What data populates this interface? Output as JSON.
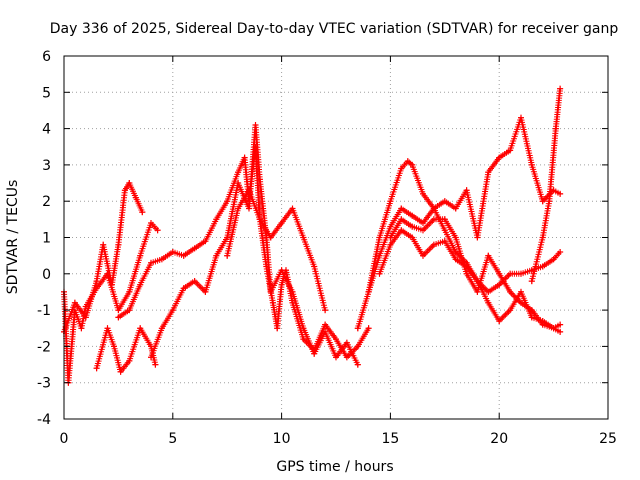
{
  "chart_data": {
    "type": "scatter",
    "title": "Day 336 of 2025, Sidereal Day-to-day VTEC variation (SDTVAR) for receiver ganp",
    "xlabel": "GPS time / hours",
    "ylabel": "SDTVAR / TECUs",
    "xlim": [
      0,
      25
    ],
    "ylim": [
      -4,
      6
    ],
    "xticks": [
      "0",
      "5",
      "10",
      "15",
      "20",
      "25"
    ],
    "yticks": [
      "-4",
      "-3",
      "-2",
      "-1",
      "0",
      "1",
      "2",
      "3",
      "4",
      "5",
      "6"
    ],
    "grid": true,
    "marker": "+",
    "color": "#ff0000",
    "series": [
      {
        "name": "trace-1",
        "x": [
          0.0,
          0.5,
          1.0,
          1.5,
          1.8,
          2.2,
          2.5,
          2.8,
          3.0,
          3.3,
          3.6
        ],
        "y": [
          -1.6,
          -0.8,
          -1.2,
          -0.2,
          0.8,
          -0.3,
          0.8,
          2.3,
          2.5,
          2.1,
          1.7
        ]
      },
      {
        "name": "trace-2",
        "x": [
          0.0,
          0.2,
          0.5,
          0.8,
          1.0,
          1.5,
          2.0,
          2.5,
          3.0,
          3.5,
          4.0,
          4.3
        ],
        "y": [
          -0.5,
          -3.0,
          -1.0,
          -1.5,
          -0.9,
          -0.4,
          0.0,
          -1.0,
          -0.5,
          0.5,
          1.4,
          1.2
        ]
      },
      {
        "name": "trace-3",
        "x": [
          1.5,
          2.0,
          2.3,
          2.6,
          3.0,
          3.5,
          4.0,
          4.2
        ],
        "y": [
          -2.6,
          -1.5,
          -2.0,
          -2.7,
          -2.4,
          -1.5,
          -2.0,
          -2.5
        ]
      },
      {
        "name": "trace-4",
        "x": [
          2.5,
          3.0,
          3.5,
          4.0,
          4.5,
          5.0,
          5.5,
          6.0,
          6.5,
          7.0,
          7.5,
          8.0,
          8.3,
          8.5,
          8.8,
          9.0,
          9.3,
          9.6,
          9.8,
          10.0,
          10.2,
          10.5,
          11.0,
          11.5,
          12.0,
          12.5,
          13.0,
          13.5,
          14.0
        ],
        "y": [
          -1.2,
          -1.0,
          -0.3,
          0.3,
          0.4,
          0.6,
          0.5,
          0.7,
          0.9,
          1.5,
          2.0,
          2.8,
          3.2,
          2.0,
          3.5,
          1.5,
          0.2,
          -0.8,
          -1.5,
          -0.3,
          0.1,
          -0.8,
          -1.8,
          -2.1,
          -1.4,
          -1.8,
          -2.3,
          -2.0,
          -1.5
        ]
      },
      {
        "name": "trace-5",
        "x": [
          4.0,
          4.5,
          5.0,
          5.5,
          6.0,
          6.5,
          7.0,
          7.5,
          8.0,
          8.5,
          8.8,
          9.0,
          9.3,
          9.5,
          10.0,
          10.5,
          11.0,
          11.5,
          12.0,
          12.5,
          13.0,
          13.5
        ],
        "y": [
          -2.3,
          -1.5,
          -1.0,
          -0.4,
          -0.2,
          -0.5,
          0.5,
          1.0,
          2.5,
          1.8,
          4.1,
          2.6,
          1.0,
          -0.5,
          0.1,
          -0.5,
          -1.5,
          -2.2,
          -1.6,
          -2.3,
          -1.9,
          -2.5
        ]
      },
      {
        "name": "trace-6",
        "x": [
          7.5,
          8.0,
          8.5,
          9.0,
          9.5,
          10.0,
          10.5,
          11.0,
          11.5,
          12.0
        ],
        "y": [
          0.5,
          1.8,
          2.3,
          1.5,
          1.0,
          1.4,
          1.8,
          1.0,
          0.2,
          -1.0
        ]
      },
      {
        "name": "trace-7",
        "x": [
          13.5,
          14.0,
          14.5,
          15.0,
          15.5,
          15.8,
          16.0,
          16.5,
          17.0,
          17.5,
          18.0,
          18.5,
          19.0,
          19.5,
          20.0,
          20.5,
          21.0,
          21.5,
          22.0,
          22.5,
          22.8
        ],
        "y": [
          -1.5,
          -0.5,
          1.0,
          2.0,
          2.9,
          3.1,
          3.0,
          2.2,
          1.8,
          1.2,
          0.6,
          0.3,
          -0.2,
          -0.8,
          -1.3,
          -1.0,
          -0.5,
          -1.2,
          -1.3,
          -1.5,
          -1.6
        ]
      },
      {
        "name": "trace-8",
        "x": [
          14.0,
          14.5,
          15.0,
          15.5,
          16.0,
          16.5,
          17.0,
          17.5,
          18.0,
          18.5,
          19.0,
          19.5,
          20.0,
          20.5,
          21.0,
          21.5,
          22.0,
          22.5,
          22.8
        ],
        "y": [
          -0.5,
          0.5,
          1.3,
          1.8,
          1.6,
          1.4,
          1.8,
          2.0,
          1.8,
          2.3,
          1.0,
          2.8,
          3.2,
          3.4,
          4.3,
          3.0,
          2.0,
          2.3,
          2.2
        ]
      },
      {
        "name": "trace-9",
        "x": [
          14.5,
          15.0,
          15.5,
          16.0,
          16.5,
          17.0,
          17.5,
          18.0,
          18.5,
          19.0,
          19.5,
          20.0,
          20.5,
          21.0,
          21.5,
          22.0,
          22.5,
          22.8
        ],
        "y": [
          0.0,
          0.8,
          1.2,
          1.0,
          0.5,
          0.8,
          0.9,
          0.4,
          0.2,
          -0.2,
          -0.5,
          -0.3,
          0.0,
          0.0,
          0.1,
          0.2,
          0.4,
          0.6
        ]
      },
      {
        "name": "trace-10",
        "x": [
          15.0,
          15.5,
          16.0,
          16.5,
          17.0,
          17.5,
          18.0,
          18.5,
          19.0,
          19.5,
          20.0,
          20.5,
          21.0,
          21.5,
          22.0,
          22.5,
          22.8
        ],
        "y": [
          1.0,
          1.5,
          1.3,
          1.2,
          1.5,
          1.5,
          1.0,
          0.0,
          -0.5,
          0.5,
          0.0,
          -0.5,
          -0.8,
          -1.0,
          -1.4,
          -1.5,
          -1.4
        ]
      },
      {
        "name": "trace-11",
        "x": [
          21.5,
          22.0,
          22.3,
          22.6,
          22.8
        ],
        "y": [
          -0.2,
          1.0,
          2.0,
          4.0,
          5.1
        ]
      }
    ]
  }
}
